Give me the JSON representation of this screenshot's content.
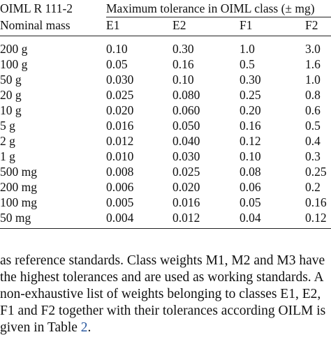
{
  "table": {
    "header": {
      "standard": "OIML R 111-2",
      "group_title": "Maximum tolerance in OIML class (± mg)",
      "mass_col": "Nominal mass",
      "classes": [
        "E1",
        "E2",
        "F1",
        "F2"
      ]
    },
    "rows": [
      {
        "mass": "200 g",
        "values": [
          "0.10",
          "0.30",
          "1.0",
          "3.0"
        ]
      },
      {
        "mass": "100 g",
        "values": [
          "0.05",
          "0.16",
          "0.5",
          "1.6"
        ]
      },
      {
        "mass": "50 g",
        "values": [
          "0.030",
          "0.10",
          "0.30",
          "1.0"
        ]
      },
      {
        "mass": "20 g",
        "values": [
          "0.025",
          "0.080",
          "0.25",
          "0.8"
        ]
      },
      {
        "mass": "10 g",
        "values": [
          "0.020",
          "0.060",
          "0.20",
          "0.6"
        ]
      },
      {
        "mass": "5 g",
        "values": [
          "0.016",
          "0.050",
          "0.16",
          "0.5"
        ]
      },
      {
        "mass": "2 g",
        "values": [
          "0.012",
          "0.040",
          "0.12",
          "0.4"
        ]
      },
      {
        "mass": "1 g",
        "values": [
          "0.010",
          "0.030",
          "0.10",
          "0.3"
        ]
      },
      {
        "mass": "500 mg",
        "values": [
          "0.008",
          "0.025",
          "0.08",
          "0.25"
        ]
      },
      {
        "mass": "200 mg",
        "values": [
          "0.006",
          "0.020",
          "0.06",
          "0.2"
        ]
      },
      {
        "mass": "100 mg",
        "values": [
          "0.005",
          "0.016",
          "0.05",
          "0.16"
        ]
      },
      {
        "mass": "50 mg",
        "values": [
          "0.004",
          "0.012",
          "0.04",
          "0.12"
        ]
      }
    ]
  },
  "paragraph": {
    "lines": [
      {
        "text": "as reference standards. Class weights M1, M2 and M3 have"
      },
      {
        "text": "the highest tolerances and are used as working standards. A"
      },
      {
        "text": "non-exhaustive list of weights belonging to classes E1, E2,"
      },
      {
        "text": "F1 and F2 together with their tolerances according OILM is"
      },
      {
        "text": "given in Table ",
        "link": "2",
        "after": "."
      }
    ]
  }
}
